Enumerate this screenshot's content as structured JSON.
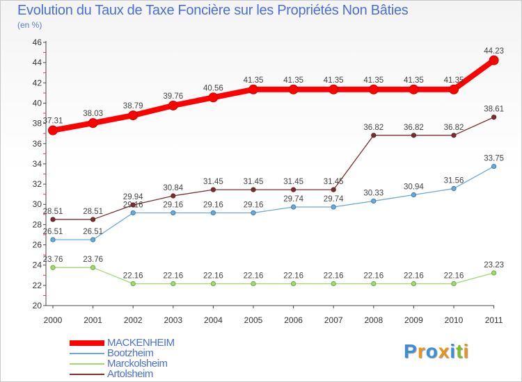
{
  "title": "Evolution du Taux de Taxe Foncière sur les Propriétés Non Bâties",
  "subtitle": "(en %)",
  "logo": {
    "text": "Proxiti",
    "colors": [
      "#3b8fd9",
      "#e8941a",
      "#3b8fd9",
      "#e8941a",
      "#3b8fd9",
      "#7abf2a",
      "#e8941a"
    ]
  },
  "chart_data": {
    "type": "line",
    "x": [
      "2000",
      "2001",
      "2002",
      "2003",
      "2004",
      "2005",
      "2006",
      "2007",
      "2008",
      "2009",
      "2010",
      "2011"
    ],
    "ylim": [
      20,
      46
    ],
    "yticks": [
      20,
      22,
      24,
      26,
      28,
      30,
      32,
      34,
      36,
      38,
      40,
      42,
      44,
      46
    ],
    "grid": false,
    "legend": "bottom-left",
    "series": [
      {
        "name": "MACKENHEIM",
        "color": "#ff0000",
        "values": [
          37.31,
          38.03,
          38.79,
          39.76,
          40.56,
          41.35,
          41.35,
          41.35,
          41.35,
          41.35,
          41.35,
          44.23
        ]
      },
      {
        "name": "Bootzheim",
        "color": "#6aa8d8",
        "values": [
          26.51,
          26.51,
          29.16,
          29.16,
          29.16,
          29.16,
          29.74,
          29.74,
          30.33,
          30.94,
          31.56,
          33.75
        ]
      },
      {
        "name": "Marckolsheim",
        "color": "#9fd870",
        "values": [
          23.76,
          23.76,
          22.16,
          22.16,
          22.16,
          22.16,
          22.16,
          22.16,
          22.16,
          22.16,
          22.16,
          23.23
        ]
      },
      {
        "name": "Artolsheim",
        "color": "#7a2f2f",
        "values": [
          28.51,
          28.51,
          29.94,
          30.84,
          31.45,
          31.45,
          31.45,
          31.45,
          36.82,
          36.82,
          36.82,
          38.61
        ]
      }
    ]
  }
}
